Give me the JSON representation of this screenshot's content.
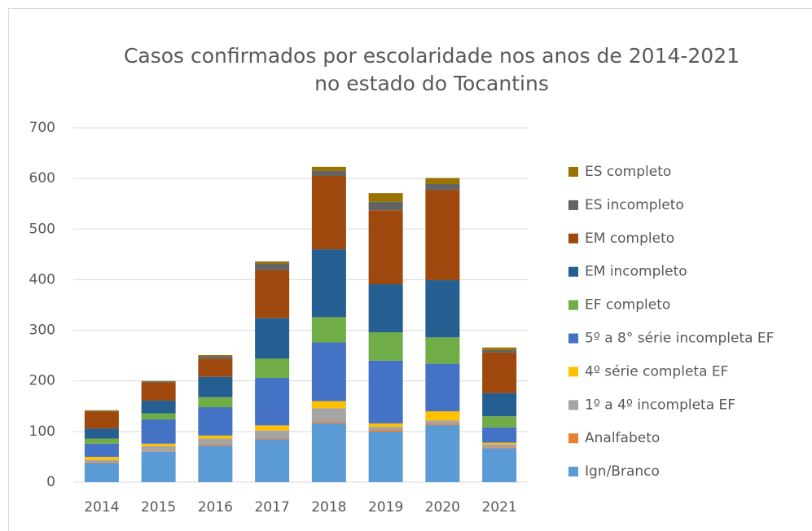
{
  "chart_data": {
    "type": "stacked_bar",
    "title": [
      "Casos confirmados por escolaridade nos anos de 2014-2021",
      "no estado do Tocantins"
    ],
    "categories": [
      "2014",
      "2015",
      "2016",
      "2017",
      "2018",
      "2019",
      "2020",
      "2021"
    ],
    "ylim": [
      0,
      700
    ],
    "yticks": [
      0,
      100,
      200,
      300,
      400,
      500,
      600,
      700
    ],
    "grid": true,
    "legend": "right",
    "series": [
      {
        "name": "Ign/Branco",
        "color": "#5b9bd5",
        "values": [
          38,
          60,
          72,
          85,
          117,
          100,
          113,
          67
        ]
      },
      {
        "name": "Analfabeto",
        "color": "#ed7d31",
        "values": [
          2,
          1,
          2,
          2,
          3,
          3,
          3,
          2
        ]
      },
      {
        "name": "1º a 4º incompleta EF",
        "color": "#a5a5a5",
        "values": [
          4,
          10,
          12,
          15,
          26,
          6,
          6,
          6
        ]
      },
      {
        "name": "4º série completa EF",
        "color": "#ffc000",
        "values": [
          6,
          5,
          6,
          10,
          14,
          7,
          18,
          3
        ]
      },
      {
        "name": "5º a 8° série incompleta EF",
        "color": "#4472c4",
        "values": [
          26,
          48,
          56,
          94,
          116,
          124,
          94,
          30
        ]
      },
      {
        "name": "EF completo",
        "color": "#70ad47",
        "values": [
          10,
          12,
          20,
          38,
          50,
          56,
          52,
          22
        ]
      },
      {
        "name": "EM incompleto",
        "color": "#255e91",
        "values": [
          20,
          25,
          40,
          80,
          134,
          95,
          113,
          46
        ]
      },
      {
        "name": "EM completo",
        "color": "#9e480e",
        "values": [
          33,
          36,
          36,
          95,
          145,
          146,
          178,
          80
        ]
      },
      {
        "name": "ES incompleto",
        "color": "#636363",
        "values": [
          1,
          2,
          5,
          13,
          10,
          17,
          12,
          5
        ]
      },
      {
        "name": "ES completo",
        "color": "#997300",
        "values": [
          2,
          1,
          2,
          4,
          8,
          17,
          12,
          5
        ]
      }
    ]
  }
}
